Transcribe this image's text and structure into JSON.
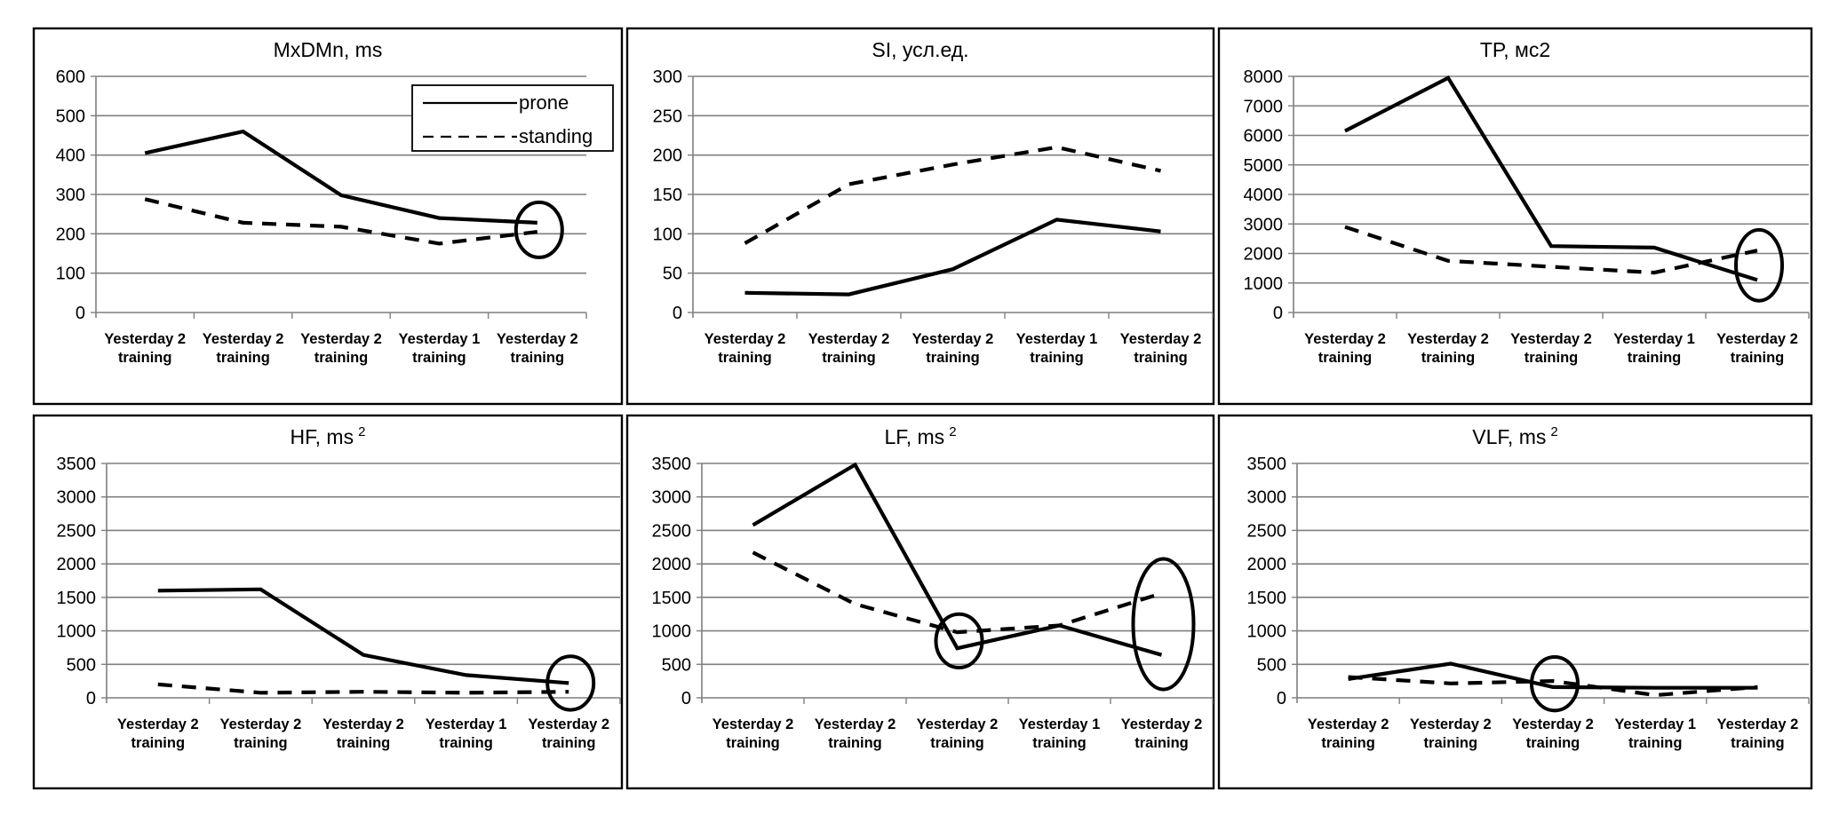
{
  "chart_data": [
    {
      "type": "line",
      "title": "MxDMn, ms",
      "title_sup": "",
      "categories": [
        [
          "Yesterday 2",
          "training"
        ],
        [
          "Yesterday 2",
          "training"
        ],
        [
          "Yesterday 2",
          "training"
        ],
        [
          "Yesterday 1",
          "training"
        ],
        [
          "Yesterday 2",
          "training"
        ]
      ],
      "ylim": [
        0,
        600
      ],
      "yticks": [
        0,
        100,
        200,
        300,
        400,
        500,
        600
      ],
      "series": [
        {
          "name": "prone",
          "style": "solid",
          "values": [
            405,
            460,
            298,
            240,
            228
          ]
        },
        {
          "name": "standing",
          "style": "dashed",
          "values": [
            288,
            228,
            218,
            175,
            205
          ]
        }
      ],
      "highlights": [
        {
          "category_index": 4,
          "y_center": 210,
          "y_span": 140
        }
      ],
      "legend": {
        "position": "top-right",
        "entries": [
          "prone",
          "standing"
        ]
      }
    },
    {
      "type": "line",
      "title": "SI, усл.ед.",
      "title_sup": "",
      "categories": [
        [
          "Yesterday 2",
          "training"
        ],
        [
          "Yesterday 2",
          "training"
        ],
        [
          "Yesterday 2",
          "training"
        ],
        [
          "Yesterday 1",
          "training"
        ],
        [
          "Yesterday 2",
          "training"
        ]
      ],
      "ylim": [
        0,
        300
      ],
      "yticks": [
        0,
        50,
        100,
        150,
        200,
        250,
        300
      ],
      "series": [
        {
          "name": "prone",
          "style": "solid",
          "values": [
            25,
            23,
            55,
            118,
            103
          ]
        },
        {
          "name": "standing",
          "style": "dashed",
          "values": [
            88,
            163,
            188,
            210,
            180
          ]
        }
      ],
      "highlights": []
    },
    {
      "type": "line",
      "title": "TP, мс2",
      "title_sup": "",
      "categories": [
        [
          "Yesterday 2",
          "training"
        ],
        [
          "Yesterday 2",
          "training"
        ],
        [
          "Yesterday 2",
          "training"
        ],
        [
          "Yesterday 1",
          "training"
        ],
        [
          "Yesterday 2",
          "training"
        ]
      ],
      "ylim": [
        0,
        8000
      ],
      "yticks": [
        0,
        1000,
        2000,
        3000,
        4000,
        5000,
        6000,
        7000,
        8000
      ],
      "series": [
        {
          "name": "prone",
          "style": "solid",
          "values": [
            6150,
            7950,
            2250,
            2200,
            1100
          ]
        },
        {
          "name": "standing",
          "style": "dashed",
          "values": [
            2900,
            1750,
            1550,
            1350,
            2100
          ]
        }
      ],
      "highlights": [
        {
          "category_index": 4,
          "y_center": 1600,
          "y_span": 2400
        }
      ]
    },
    {
      "type": "line",
      "title": "HF, ms",
      "title_sup": "2",
      "categories": [
        [
          "Yesterday 2",
          "training"
        ],
        [
          "Yesterday 2",
          "training"
        ],
        [
          "Yesterday 2",
          "training"
        ],
        [
          "Yesterday 1",
          "training"
        ],
        [
          "Yesterday 2",
          "training"
        ]
      ],
      "ylim": [
        0,
        3500
      ],
      "yticks": [
        0,
        500,
        1000,
        1500,
        2000,
        2500,
        3000,
        3500
      ],
      "series": [
        {
          "name": "prone",
          "style": "solid",
          "values": [
            1600,
            1620,
            640,
            340,
            220
          ]
        },
        {
          "name": "standing",
          "style": "dashed",
          "values": [
            200,
            75,
            90,
            75,
            90
          ]
        }
      ],
      "highlights": [
        {
          "category_index": 4,
          "y_center": 220,
          "y_span": 800
        }
      ]
    },
    {
      "type": "line",
      "title": "LF, ms",
      "title_sup": "2",
      "categories": [
        [
          "Yesterday 2",
          "training"
        ],
        [
          "Yesterday 2",
          "training"
        ],
        [
          "Yesterday 2",
          "training"
        ],
        [
          "Yesterday 1",
          "training"
        ],
        [
          "Yesterday 2",
          "training"
        ]
      ],
      "ylim": [
        0,
        3500
      ],
      "yticks": [
        0,
        500,
        1000,
        1500,
        2000,
        2500,
        3000,
        3500
      ],
      "series": [
        {
          "name": "prone",
          "style": "solid",
          "values": [
            2580,
            3480,
            740,
            1080,
            640
          ]
        },
        {
          "name": "standing",
          "style": "dashed",
          "values": [
            2170,
            1400,
            980,
            1080,
            1560
          ]
        }
      ],
      "highlights": [
        {
          "category_index": 2,
          "y_center": 850,
          "y_span": 800
        },
        {
          "category_index": 4,
          "y_center": 1100,
          "y_span": 1950
        }
      ]
    },
    {
      "type": "line",
      "title": "VLF, ms",
      "title_sup": "2",
      "categories": [
        [
          "Yesterday 2",
          "training"
        ],
        [
          "Yesterday 2",
          "training"
        ],
        [
          "Yesterday 2",
          "training"
        ],
        [
          "Yesterday 1",
          "training"
        ],
        [
          "Yesterday 2",
          "training"
        ]
      ],
      "ylim": [
        0,
        3500
      ],
      "yticks": [
        0,
        500,
        1000,
        1500,
        2000,
        2500,
        3000,
        3500
      ],
      "series": [
        {
          "name": "prone",
          "style": "solid",
          "values": [
            280,
            510,
            160,
            150,
            150
          ]
        },
        {
          "name": "standing",
          "style": "dashed",
          "values": [
            310,
            215,
            250,
            40,
            160
          ]
        }
      ],
      "highlights": [
        {
          "category_index": 2,
          "y_center": 210,
          "y_span": 800
        }
      ]
    }
  ]
}
